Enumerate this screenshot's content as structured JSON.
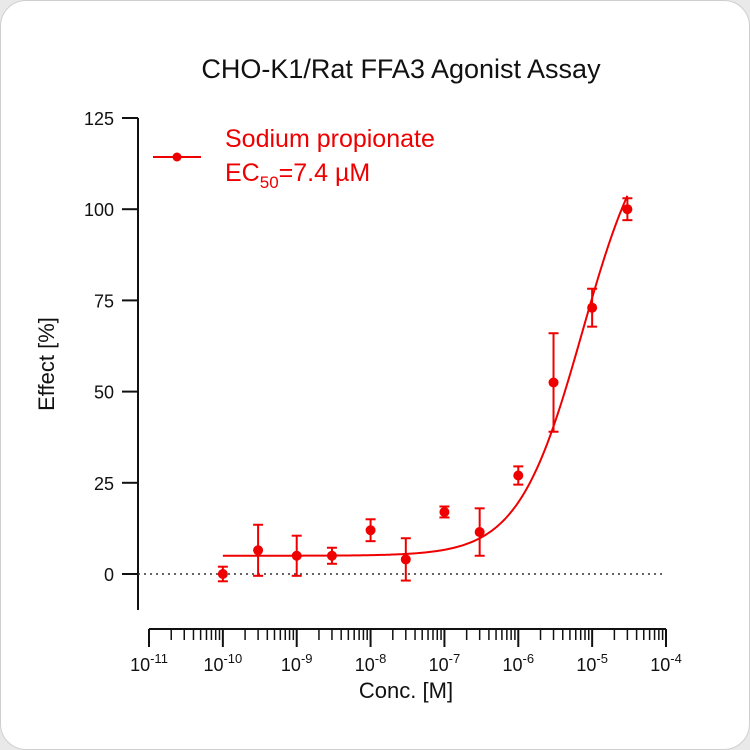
{
  "chart_data": {
    "type": "scatter",
    "title": "CHO-K1/Rat FFA3 Agonist Assay",
    "xlabel": "Conc. [M]",
    "ylabel": "Effect  [%]",
    "x_scale": "log",
    "xlim": [
      1e-11,
      0.0001
    ],
    "ylim": [
      -10,
      125
    ],
    "x_ticks": [
      {
        "base": "10",
        "exp": "-11"
      },
      {
        "base": "10",
        "exp": "-10"
      },
      {
        "base": "10",
        "exp": "-9"
      },
      {
        "base": "10",
        "exp": "-8"
      },
      {
        "base": "10",
        "exp": "-7"
      },
      {
        "base": "10",
        "exp": "-6"
      },
      {
        "base": "10",
        "exp": "-5"
      },
      {
        "base": "10",
        "exp": "-4"
      }
    ],
    "y_ticks": [
      "0",
      "25",
      "50",
      "75",
      "100",
      "125"
    ],
    "y_tick_values": [
      0,
      25,
      50,
      75,
      100,
      125
    ],
    "color": "#ee0000",
    "legend": {
      "position": "top-left",
      "series_name": "Sodium propionate",
      "ec_prefix": "EC",
      "ec_sub": "50",
      "ec_value": "=7.4 µM"
    },
    "series": [
      {
        "name": "Sodium propionate",
        "points": [
          {
            "x": 1e-10,
            "y": 0.0,
            "err": 2.0
          },
          {
            "x": 3e-10,
            "y": 6.5,
            "err": 7.0
          },
          {
            "x": 1e-09,
            "y": 5.0,
            "err": 5.5
          },
          {
            "x": 3e-09,
            "y": 5.0,
            "err": 2.2
          },
          {
            "x": 1e-08,
            "y": 12.0,
            "err": 3.0
          },
          {
            "x": 3e-08,
            "y": 4.0,
            "err": 5.8
          },
          {
            "x": 1e-07,
            "y": 17.0,
            "err": 1.5
          },
          {
            "x": 3e-07,
            "y": 11.5,
            "err": 6.5
          },
          {
            "x": 1e-06,
            "y": 27.0,
            "err": 2.5
          },
          {
            "x": 3e-06,
            "y": 52.5,
            "err": 13.5
          },
          {
            "x": 1e-05,
            "y": 73.0,
            "err": 5.2
          },
          {
            "x": 3e-05,
            "y": 100.0,
            "err": 3.0
          }
        ],
        "fit": {
          "model": "4PL",
          "bottom": 5,
          "top": 128,
          "ec50": 7.4e-06,
          "hill": 1.0,
          "x_range": [
            1e-10,
            3e-05
          ]
        }
      }
    ],
    "reference_line": {
      "y": 0,
      "style": "dotted"
    }
  }
}
